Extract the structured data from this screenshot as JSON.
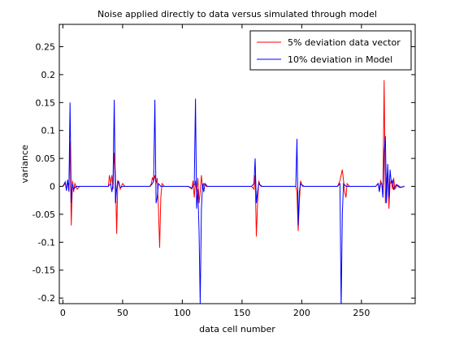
{
  "chart_data": {
    "type": "line",
    "title": "Noise applied directly to data versus simulated through model",
    "xlabel": "data cell number",
    "ylabel": "variance",
    "xlim": [
      -3,
      295
    ],
    "ylim": [
      -0.21,
      0.29
    ],
    "xticks": [
      0,
      50,
      100,
      150,
      200,
      250
    ],
    "xtick_labels": [
      "0",
      "50",
      "100",
      "150",
      "200",
      "250"
    ],
    "yticks": [
      -0.2,
      -0.15,
      -0.1,
      -0.05,
      0,
      0.05,
      0.1,
      0.15,
      0.2,
      0.25
    ],
    "ytick_labels": [
      "-0.2",
      "-0.15",
      "-0.1",
      "-0.05",
      "0",
      "0.05",
      "0.1",
      "0.15",
      "0.2",
      "0.25"
    ],
    "grid": false,
    "legend_position": "top-right",
    "series": [
      {
        "name": "5% deviation data vector",
        "color": "#ff0000",
        "points": [
          [
            0,
            0
          ],
          [
            2,
            0.005
          ],
          [
            3,
            -0.005
          ],
          [
            4,
            0.01
          ],
          [
            5,
            -0.01
          ],
          [
            6,
            0.08
          ],
          [
            7,
            -0.07
          ],
          [
            8,
            0.01
          ],
          [
            9,
            -0.01
          ],
          [
            10,
            0.005
          ],
          [
            12,
            -0.005
          ],
          [
            14,
            0
          ],
          [
            38,
            0
          ],
          [
            39,
            0.02
          ],
          [
            40,
            0.005
          ],
          [
            41,
            0.02
          ],
          [
            42,
            -0.005
          ],
          [
            43,
            0.06
          ],
          [
            44,
            0.02
          ],
          [
            45,
            -0.085
          ],
          [
            46,
            0.01
          ],
          [
            47,
            0.008
          ],
          [
            48,
            -0.005
          ],
          [
            50,
            0.005
          ],
          [
            52,
            0
          ],
          [
            73,
            0
          ],
          [
            74,
            0.005
          ],
          [
            75,
            0.015
          ],
          [
            76,
            0.01
          ],
          [
            77,
            0.02
          ],
          [
            78,
            0.005
          ],
          [
            79,
            0.015
          ],
          [
            80,
            -0.04
          ],
          [
            81,
            -0.11
          ],
          [
            82,
            -0.02
          ],
          [
            83,
            0.005
          ],
          [
            85,
            0
          ],
          [
            105,
            0
          ],
          [
            108,
            -0.005
          ],
          [
            109,
            0.01
          ],
          [
            110,
            -0.02
          ],
          [
            111,
            0.01
          ],
          [
            112,
            -0.01
          ],
          [
            113,
            0.015
          ],
          [
            114,
            -0.03
          ],
          [
            115,
            -0.01
          ],
          [
            116,
            0.02
          ],
          [
            117,
            -0.005
          ],
          [
            118,
            0.005
          ],
          [
            120,
            0
          ],
          [
            158,
            0
          ],
          [
            160,
            -0.005
          ],
          [
            161,
            0.02
          ],
          [
            162,
            -0.09
          ],
          [
            163,
            -0.03
          ],
          [
            164,
            0.01
          ],
          [
            165,
            0.003
          ],
          [
            167,
            0
          ],
          [
            195,
            0
          ],
          [
            196,
            -0.01
          ],
          [
            197,
            -0.08
          ],
          [
            198,
            -0.03
          ],
          [
            199,
            0.01
          ],
          [
            200,
            0.003
          ],
          [
            202,
            0
          ],
          [
            230,
            0
          ],
          [
            232,
            0.01
          ],
          [
            234,
            0.03
          ],
          [
            236,
            -0.01
          ],
          [
            237,
            -0.02
          ],
          [
            238,
            0.005
          ],
          [
            240,
            0
          ],
          [
            262,
            0
          ],
          [
            264,
            0.005
          ],
          [
            265,
            -0.005
          ],
          [
            266,
            0.01
          ],
          [
            267,
            0.005
          ],
          [
            268,
            -0.01
          ],
          [
            269,
            0.19
          ],
          [
            270,
            -0.03
          ],
          [
            271,
            0.005
          ],
          [
            272,
            0.03
          ],
          [
            273,
            -0.04
          ],
          [
            274,
            0.005
          ],
          [
            275,
            0.01
          ],
          [
            276,
            -0.005
          ],
          [
            277,
            0.015
          ],
          [
            278,
            -0.005
          ],
          [
            280,
            0.003
          ],
          [
            283,
            -0.002
          ],
          [
            286,
            0
          ]
        ]
      },
      {
        "name": "10% deviation in Model",
        "color": "#0000ff",
        "points": [
          [
            0,
            0
          ],
          [
            2,
            0.008
          ],
          [
            3,
            -0.008
          ],
          [
            4,
            0.012
          ],
          [
            5,
            -0.008
          ],
          [
            6,
            0.15
          ],
          [
            7,
            -0.03
          ],
          [
            8,
            0.005
          ],
          [
            9,
            -0.005
          ],
          [
            11,
            0
          ],
          [
            38,
            0
          ],
          [
            40,
            0.005
          ],
          [
            41,
            -0.01
          ],
          [
            42,
            0.005
          ],
          [
            43,
            0.155
          ],
          [
            44,
            -0.03
          ],
          [
            45,
            -0.005
          ],
          [
            46,
            0.01
          ],
          [
            48,
            -0.002
          ],
          [
            50,
            0
          ],
          [
            73,
            0
          ],
          [
            75,
            0.005
          ],
          [
            76,
            0.01
          ],
          [
            77,
            0.155
          ],
          [
            78,
            -0.03
          ],
          [
            79,
            -0.02
          ],
          [
            80,
            0.005
          ],
          [
            82,
            0
          ],
          [
            105,
            0
          ],
          [
            108,
            -0.003
          ],
          [
            110,
            0.003
          ],
          [
            111,
            0.157
          ],
          [
            112,
            -0.04
          ],
          [
            113,
            -0.005
          ],
          [
            114,
            -0.08
          ],
          [
            115,
            -0.21
          ],
          [
            116,
            -0.04
          ],
          [
            117,
            0.005
          ],
          [
            118,
            -0.01
          ],
          [
            119,
            0.005
          ],
          [
            121,
            0
          ],
          [
            158,
            0
          ],
          [
            160,
            0.005
          ],
          [
            161,
            0.05
          ],
          [
            162,
            -0.03
          ],
          [
            163,
            -0.01
          ],
          [
            164,
            0.005
          ],
          [
            166,
            0
          ],
          [
            195,
            0
          ],
          [
            196,
            0.085
          ],
          [
            197,
            -0.07
          ],
          [
            198,
            -0.01
          ],
          [
            199,
            0.005
          ],
          [
            201,
            0
          ],
          [
            230,
            0
          ],
          [
            232,
            0.005
          ],
          [
            233,
            -0.22
          ],
          [
            234,
            -0.05
          ],
          [
            235,
            0.005
          ],
          [
            237,
            0
          ],
          [
            262,
            0
          ],
          [
            264,
            0.005
          ],
          [
            265,
            -0.01
          ],
          [
            266,
            0.005
          ],
          [
            267,
            0.005
          ],
          [
            268,
            -0.02
          ],
          [
            269,
            0.06
          ],
          [
            270,
            0.09
          ],
          [
            271,
            -0.03
          ],
          [
            272,
            0.04
          ],
          [
            273,
            -0.02
          ],
          [
            274,
            0.03
          ],
          [
            275,
            0.005
          ],
          [
            276,
            0.01
          ],
          [
            277,
            -0.005
          ],
          [
            279,
            0.003
          ],
          [
            282,
            -0.002
          ],
          [
            286,
            0
          ]
        ]
      }
    ]
  }
}
